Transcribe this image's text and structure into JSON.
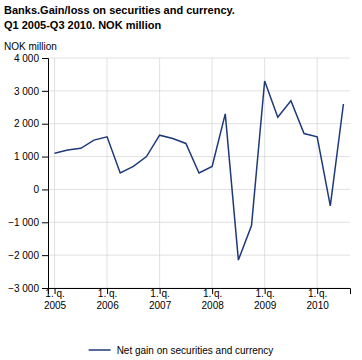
{
  "chart_data": {
    "type": "line",
    "title": "Banks.Gain/loss on securities and currency.",
    "subtitle": "Q1 2005-Q3 2010. NOK million",
    "ylabel": "NOK million",
    "categories": [
      "1. q.\n2005",
      null,
      null,
      null,
      "1. q.\n2006",
      null,
      null,
      null,
      "1. q.\n2007",
      null,
      null,
      null,
      "1. q.\n2008",
      null,
      null,
      null,
      "1. q.\n2009",
      null,
      null,
      null,
      "1. q.\n2010",
      null,
      null
    ],
    "series": [
      {
        "name": "Net gain on securities and currency",
        "color": "#1F3A7A",
        "values": [
          1100,
          1200,
          1250,
          1500,
          1600,
          500,
          700,
          1000,
          1650,
          1550,
          1400,
          500,
          700,
          2300,
          -2150,
          -1100,
          3300,
          2200,
          2700,
          1700,
          1600,
          -500,
          2600
        ]
      }
    ],
    "ylim": [
      -3000,
      4000
    ],
    "yticks": [
      {
        "value": -3000,
        "label": "−3 000"
      },
      {
        "value": -2000,
        "label": "−2 000"
      },
      {
        "value": -1000,
        "label": "−1 000"
      },
      0,
      {
        "value": 1000,
        "label": "1 000"
      },
      {
        "value": 2000,
        "label": "2 000"
      },
      {
        "value": 3000,
        "label": "3 000"
      },
      {
        "value": 4000,
        "label": "4 000"
      }
    ],
    "grid": true,
    "legend": "bottom"
  }
}
